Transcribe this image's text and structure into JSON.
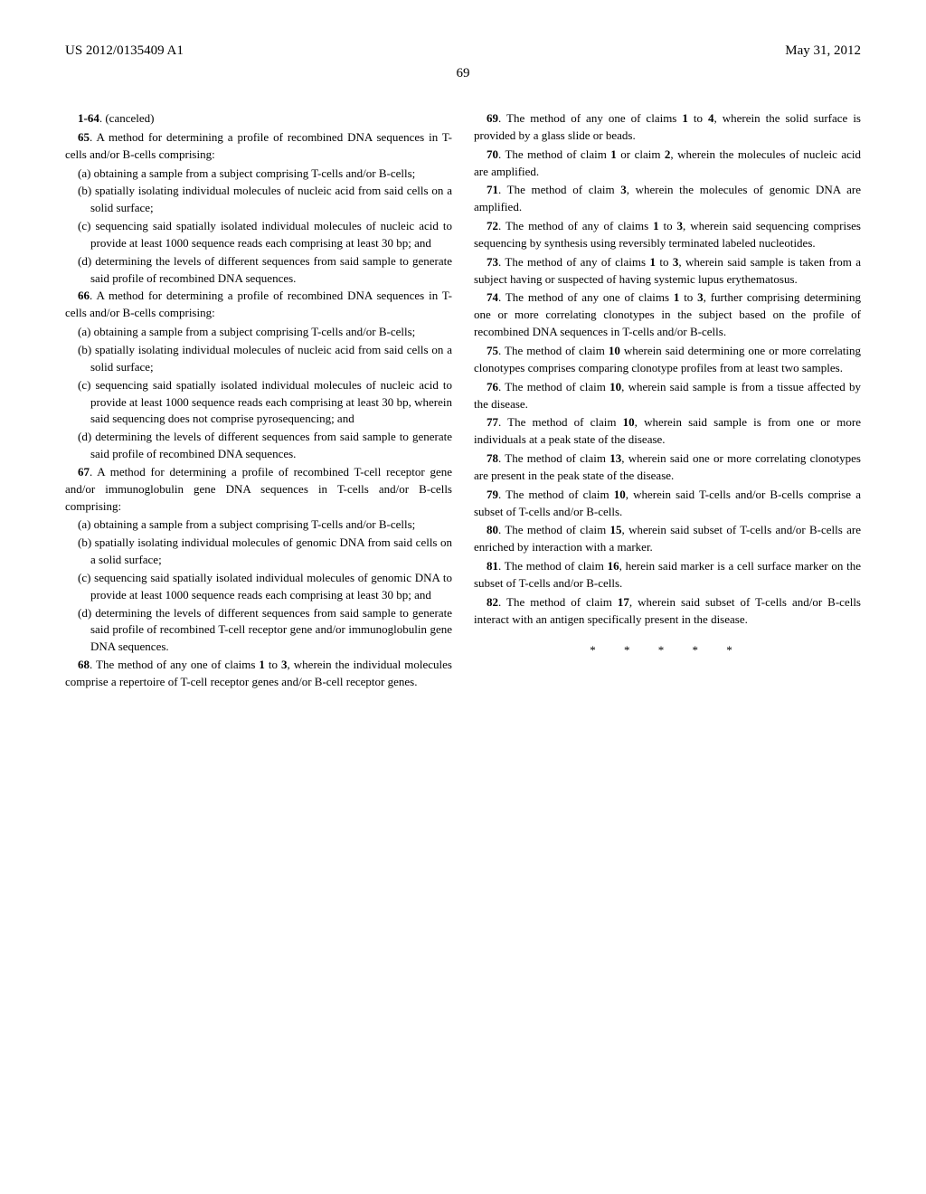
{
  "header": {
    "pub_number": "US 2012/0135409 A1",
    "pub_date": "May 31, 2012"
  },
  "page_number": "69",
  "left_column": {
    "claim_canceled": {
      "num": "1-64",
      "text": ". (canceled)"
    },
    "claim65": {
      "num": "65",
      "intro": ". A method for determining a profile of recombined DNA sequences in T-cells and/or B-cells comprising:",
      "a": "(a) obtaining a sample from a subject comprising T-cells and/or B-cells;",
      "b": "(b) spatially isolating individual molecules of nucleic acid from said cells on a solid surface;",
      "c": "(c) sequencing said spatially isolated individual molecules of nucleic acid to provide at least 1000 sequence reads each comprising at least 30 bp; and",
      "d": "(d) determining the levels of different sequences from said sample to generate said profile of recombined DNA sequences."
    },
    "claim66": {
      "num": "66",
      "intro": ". A method for determining a profile of recombined DNA sequences in T-cells and/or B-cells comprising:",
      "a": "(a) obtaining a sample from a subject comprising T-cells and/or B-cells;",
      "b": "(b) spatially isolating individual molecules of nucleic acid from said cells on a solid surface;",
      "c": "(c) sequencing said spatially isolated individual molecules of nucleic acid to provide at least 1000 sequence reads each comprising at least 30 bp, wherein said sequencing does not comprise pyrosequencing; and",
      "d": "(d) determining the levels of different sequences from said sample to generate said profile of recombined DNA sequences."
    },
    "claim67": {
      "num": "67",
      "intro": ". A method for determining a profile of recombined T-cell receptor gene and/or immunoglobulin gene DNA sequences in T-cells and/or B-cells comprising:",
      "a": "(a) obtaining a sample from a subject comprising T-cells and/or B-cells;",
      "b": "(b) spatially isolating individual molecules of genomic DNA from said cells on a solid surface;",
      "c": "(c) sequencing said spatially isolated individual molecules of genomic DNA to provide at least 1000 sequence reads each comprising at least 30 bp; and",
      "d": "(d) determining the levels of different sequences from said sample to generate said profile of recombined T-cell receptor gene and/or immunoglobulin gene DNA sequences."
    },
    "claim68": {
      "num": "68",
      "text_before": ". The method of any one of claims ",
      "ref1": "1",
      "text_mid": " to ",
      "ref2": "3",
      "text_after": ", wherein the individual molecules comprise a repertoire of T-cell receptor genes and/or B-cell receptor genes."
    }
  },
  "right_column": {
    "claim69": {
      "num": "69",
      "text_before": ". The method of any one of claims ",
      "ref1": "1",
      "text_mid": " to ",
      "ref2": "4",
      "text_after": ", wherein the solid surface is provided by a glass slide or beads."
    },
    "claim70": {
      "num": "70",
      "text_before": ". The method of claim ",
      "ref1": "1",
      "text_mid": " or claim ",
      "ref2": "2",
      "text_after": ", wherein the molecules of nucleic acid are amplified."
    },
    "claim71": {
      "num": "71",
      "text_before": ". The method of claim ",
      "ref1": "3",
      "text_after": ", wherein the molecules of genomic DNA are amplified."
    },
    "claim72": {
      "num": "72",
      "text_before": ". The method of any of claims ",
      "ref1": "1",
      "text_mid": " to ",
      "ref2": "3",
      "text_after": ", wherein said sequencing comprises sequencing by synthesis using reversibly terminated labeled nucleotides."
    },
    "claim73": {
      "num": "73",
      "text_before": ". The method of any of claims ",
      "ref1": "1",
      "text_mid": " to ",
      "ref2": "3",
      "text_after": ", wherein said sample is taken from a subject having or suspected of having systemic lupus erythematosus."
    },
    "claim74": {
      "num": "74",
      "text_before": ". The method of any one of claims ",
      "ref1": "1",
      "text_mid": " to ",
      "ref2": "3",
      "text_after": ", further comprising determining one or more correlating clonotypes in the subject based on the profile of recombined DNA sequences in T-cells and/or B-cells."
    },
    "claim75": {
      "num": "75",
      "text_before": ". The method of claim ",
      "ref1": "10",
      "text_after": " wherein said determining one or more correlating clonotypes comprises comparing clonotype profiles from at least two samples."
    },
    "claim76": {
      "num": "76",
      "text_before": ". The method of claim ",
      "ref1": "10",
      "text_after": ", wherein said sample is from a tissue affected by the disease."
    },
    "claim77": {
      "num": "77",
      "text_before": ". The method of claim ",
      "ref1": "10",
      "text_after": ", wherein said sample is from one or more individuals at a peak state of the disease."
    },
    "claim78": {
      "num": "78",
      "text_before": ". The method of claim ",
      "ref1": "13",
      "text_after": ", wherein said one or more correlating clonotypes are present in the peak state of the disease."
    },
    "claim79": {
      "num": "79",
      "text_before": ". The method of claim ",
      "ref1": "10",
      "text_after": ", wherein said T-cells and/or B-cells comprise a subset of T-cells and/or B-cells."
    },
    "claim80": {
      "num": "80",
      "text_before": ". The method of claim ",
      "ref1": "15",
      "text_after": ", wherein said subset of T-cells and/or B-cells are enriched by interaction with a marker."
    },
    "claim81": {
      "num": "81",
      "text_before": ". The method of claim ",
      "ref1": "16",
      "text_after": ", herein said marker is a cell surface marker on the subset of T-cells and/or B-cells."
    },
    "claim82": {
      "num": "82",
      "text_before": ". The method of claim ",
      "ref1": "17",
      "text_after": ", wherein said subset of T-cells and/or B-cells interact with an antigen specifically present in the disease."
    },
    "asterisks": "* * * * *"
  }
}
